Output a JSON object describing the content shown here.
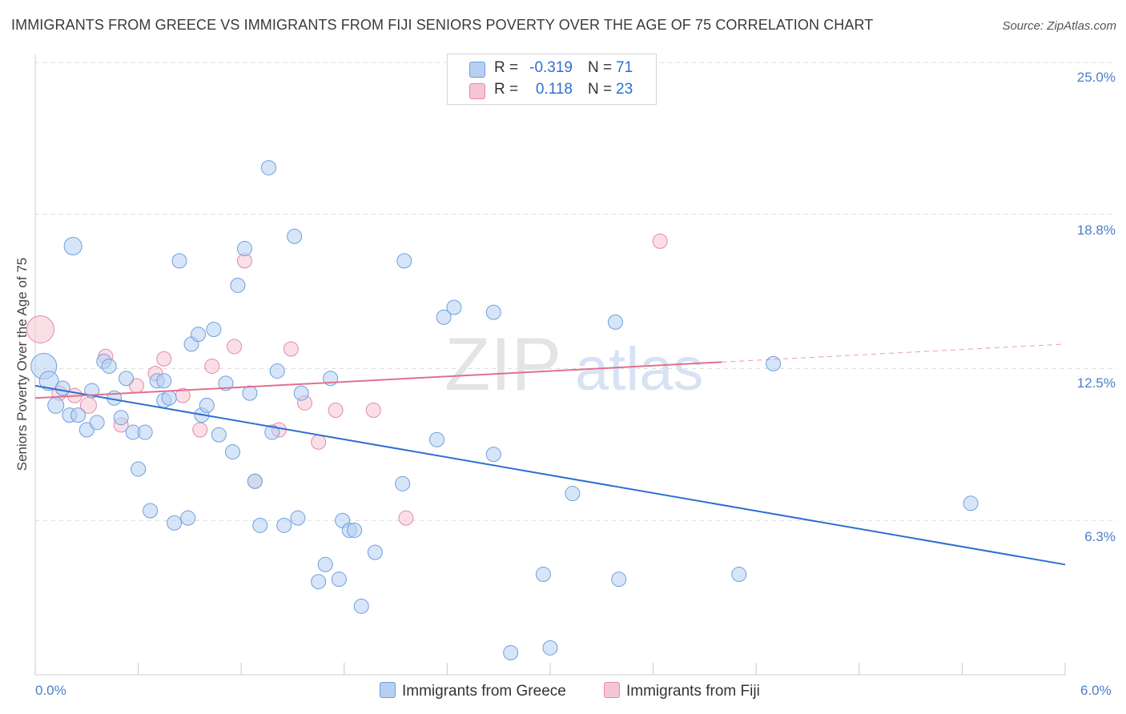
{
  "title": "IMMIGRANTS FROM GREECE VS IMMIGRANTS FROM FIJI SENIORS POVERTY OVER THE AGE OF 75 CORRELATION CHART",
  "source": "Source: ZipAtlas.com",
  "watermark": {
    "part1": "ZIP",
    "part2": "atlas"
  },
  "colors": {
    "greece_fill": "#b7d0f2",
    "greece_stroke": "#6e9fdd",
    "greece_line": "#2e6fd1",
    "fiji_fill": "#f6c5d3",
    "fiji_stroke": "#e58aa7",
    "fiji_line": "#e0708f",
    "grid": "#dcdcdc",
    "tick_label": "#4a7fc8"
  },
  "legend": {
    "greece": {
      "r_label": "R =",
      "r_value": "-0.319",
      "n_label": "N =",
      "n_value": "71"
    },
    "fiji": {
      "r_label": "R =",
      "r_value": "0.118",
      "n_label": "N =",
      "n_value": "23"
    }
  },
  "series_labels": {
    "greece": "Immigrants from Greece",
    "fiji": "Immigrants from Fiji"
  },
  "chart_data": {
    "type": "scatter",
    "title": "IMMIGRANTS FROM GREECE VS IMMIGRANTS FROM FIJI SENIORS POVERTY OVER THE AGE OF 75 CORRELATION CHART",
    "xlabel": "",
    "ylabel": "Seniors Poverty Over the Age of 75",
    "xlim": [
      0,
      6.0
    ],
    "ylim": [
      0,
      25.0
    ],
    "x_tick_labels": [
      "0.0%",
      "6.0%"
    ],
    "y_ticks": [
      6.3,
      12.5,
      18.8,
      25.0
    ],
    "y_tick_labels": [
      "6.3%",
      "12.5%",
      "18.8%",
      "25.0%"
    ],
    "grid": true,
    "legend_position": "top-center",
    "series": [
      {
        "name": "Immigrants from Greece",
        "r": -0.319,
        "n": 71,
        "trend": {
          "x0": 0.0,
          "y0": 11.8,
          "x1": 6.0,
          "y1": 4.5,
          "dash_from": null
        },
        "points": [
          {
            "x": 0.05,
            "y": 12.6,
            "s": 16
          },
          {
            "x": 0.08,
            "y": 12.0,
            "s": 12
          },
          {
            "x": 0.12,
            "y": 11.0,
            "s": 10
          },
          {
            "x": 0.16,
            "y": 11.7,
            "s": 9
          },
          {
            "x": 0.2,
            "y": 10.6,
            "s": 9
          },
          {
            "x": 0.25,
            "y": 10.6,
            "s": 9
          },
          {
            "x": 0.3,
            "y": 10.0,
            "s": 9
          },
          {
            "x": 0.33,
            "y": 11.6,
            "s": 9
          },
          {
            "x": 0.36,
            "y": 10.3,
            "s": 9
          },
          {
            "x": 0.4,
            "y": 12.8,
            "s": 9
          },
          {
            "x": 0.43,
            "y": 12.6,
            "s": 9
          },
          {
            "x": 0.46,
            "y": 11.3,
            "s": 9
          },
          {
            "x": 0.5,
            "y": 10.5,
            "s": 9
          },
          {
            "x": 0.53,
            "y": 12.1,
            "s": 9
          },
          {
            "x": 0.57,
            "y": 9.9,
            "s": 9
          },
          {
            "x": 0.6,
            "y": 8.4,
            "s": 9
          },
          {
            "x": 0.64,
            "y": 9.9,
            "s": 9
          },
          {
            "x": 0.67,
            "y": 6.7,
            "s": 9
          },
          {
            "x": 0.71,
            "y": 12.0,
            "s": 9
          },
          {
            "x": 0.75,
            "y": 11.2,
            "s": 9
          },
          {
            "x": 0.78,
            "y": 11.3,
            "s": 9
          },
          {
            "x": 0.81,
            "y": 6.2,
            "s": 9
          },
          {
            "x": 0.84,
            "y": 16.9,
            "s": 9
          },
          {
            "x": 0.89,
            "y": 6.4,
            "s": 9
          },
          {
            "x": 0.91,
            "y": 13.5,
            "s": 9
          },
          {
            "x": 0.95,
            "y": 13.9,
            "s": 9
          },
          {
            "x": 0.97,
            "y": 10.6,
            "s": 9
          },
          {
            "x": 1.0,
            "y": 11.0,
            "s": 9
          },
          {
            "x": 1.04,
            "y": 14.1,
            "s": 9
          },
          {
            "x": 1.07,
            "y": 9.8,
            "s": 9
          },
          {
            "x": 1.11,
            "y": 11.9,
            "s": 9
          },
          {
            "x": 1.15,
            "y": 9.1,
            "s": 9
          },
          {
            "x": 1.18,
            "y": 15.9,
            "s": 9
          },
          {
            "x": 1.22,
            "y": 17.4,
            "s": 9
          },
          {
            "x": 1.25,
            "y": 11.5,
            "s": 9
          },
          {
            "x": 1.28,
            "y": 7.9,
            "s": 9
          },
          {
            "x": 1.31,
            "y": 6.1,
            "s": 9
          },
          {
            "x": 1.36,
            "y": 20.7,
            "s": 9
          },
          {
            "x": 1.38,
            "y": 9.9,
            "s": 9
          },
          {
            "x": 1.41,
            "y": 12.4,
            "s": 9
          },
          {
            "x": 1.45,
            "y": 6.1,
            "s": 9
          },
          {
            "x": 1.51,
            "y": 17.9,
            "s": 9
          },
          {
            "x": 1.53,
            "y": 6.4,
            "s": 9
          },
          {
            "x": 1.55,
            "y": 11.5,
            "s": 9
          },
          {
            "x": 1.65,
            "y": 3.8,
            "s": 9
          },
          {
            "x": 1.69,
            "y": 4.5,
            "s": 9
          },
          {
            "x": 1.72,
            "y": 12.1,
            "s": 9
          },
          {
            "x": 1.77,
            "y": 3.9,
            "s": 9
          },
          {
            "x": 1.79,
            "y": 6.3,
            "s": 9
          },
          {
            "x": 1.83,
            "y": 5.9,
            "s": 9
          },
          {
            "x": 1.86,
            "y": 5.9,
            "s": 9
          },
          {
            "x": 1.9,
            "y": 2.8,
            "s": 9
          },
          {
            "x": 1.98,
            "y": 5.0,
            "s": 9
          },
          {
            "x": 2.14,
            "y": 7.8,
            "s": 9
          },
          {
            "x": 2.15,
            "y": 16.9,
            "s": 9
          },
          {
            "x": 2.34,
            "y": 9.6,
            "s": 9
          },
          {
            "x": 2.38,
            "y": 14.6,
            "s": 9
          },
          {
            "x": 2.44,
            "y": 15.0,
            "s": 9
          },
          {
            "x": 2.67,
            "y": 14.8,
            "s": 9
          },
          {
            "x": 2.67,
            "y": 9.0,
            "s": 9
          },
          {
            "x": 2.77,
            "y": 0.9,
            "s": 9
          },
          {
            "x": 2.96,
            "y": 4.1,
            "s": 9
          },
          {
            "x": 3.0,
            "y": 1.1,
            "s": 9
          },
          {
            "x": 3.13,
            "y": 7.4,
            "s": 9
          },
          {
            "x": 3.38,
            "y": 14.4,
            "s": 9
          },
          {
            "x": 3.4,
            "y": 3.9,
            "s": 9
          },
          {
            "x": 4.1,
            "y": 4.1,
            "s": 9
          },
          {
            "x": 4.3,
            "y": 12.7,
            "s": 9
          },
          {
            "x": 5.45,
            "y": 7.0,
            "s": 9
          },
          {
            "x": 0.22,
            "y": 17.5,
            "s": 11
          },
          {
            "x": 0.75,
            "y": 12.0,
            "s": 9
          }
        ]
      },
      {
        "name": "Immigrants from Fiji",
        "r": 0.118,
        "n": 23,
        "trend": {
          "x0": 0.0,
          "y0": 11.3,
          "x1": 6.0,
          "y1": 13.5,
          "dash_from": 4.0
        },
        "points": [
          {
            "x": 0.03,
            "y": 14.1,
            "s": 17
          },
          {
            "x": 0.14,
            "y": 11.5,
            "s": 9
          },
          {
            "x": 0.23,
            "y": 11.4,
            "s": 9
          },
          {
            "x": 0.31,
            "y": 11.0,
            "s": 10
          },
          {
            "x": 0.41,
            "y": 13.0,
            "s": 9
          },
          {
            "x": 0.5,
            "y": 10.2,
            "s": 9
          },
          {
            "x": 0.59,
            "y": 11.8,
            "s": 9
          },
          {
            "x": 0.7,
            "y": 12.3,
            "s": 9
          },
          {
            "x": 0.75,
            "y": 12.9,
            "s": 9
          },
          {
            "x": 0.86,
            "y": 11.4,
            "s": 9
          },
          {
            "x": 0.96,
            "y": 10.0,
            "s": 9
          },
          {
            "x": 1.03,
            "y": 12.6,
            "s": 9
          },
          {
            "x": 1.16,
            "y": 13.4,
            "s": 9
          },
          {
            "x": 1.22,
            "y": 16.9,
            "s": 9
          },
          {
            "x": 1.28,
            "y": 7.9,
            "s": 9
          },
          {
            "x": 1.42,
            "y": 10.0,
            "s": 9
          },
          {
            "x": 1.49,
            "y": 13.3,
            "s": 9
          },
          {
            "x": 1.57,
            "y": 11.1,
            "s": 9
          },
          {
            "x": 1.65,
            "y": 9.5,
            "s": 9
          },
          {
            "x": 1.75,
            "y": 10.8,
            "s": 9
          },
          {
            "x": 1.97,
            "y": 10.8,
            "s": 9
          },
          {
            "x": 2.16,
            "y": 6.4,
            "s": 9
          },
          {
            "x": 3.64,
            "y": 17.7,
            "s": 9
          }
        ]
      }
    ]
  }
}
